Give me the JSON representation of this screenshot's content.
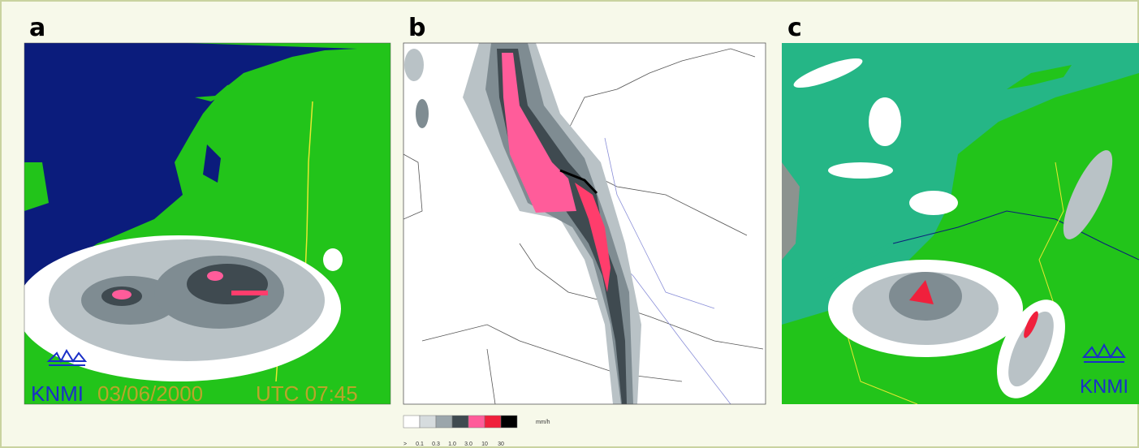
{
  "panels": [
    {
      "label": "a",
      "logo": "KNMI",
      "date": "03/06/2000",
      "time": "UTC 07:45"
    },
    {
      "label": "b"
    },
    {
      "label": "c",
      "logo": "KNMI"
    }
  ],
  "legend": {
    "prefix": ">",
    "labels": [
      "0.1",
      "0.3",
      "1.0",
      "3.0",
      "10",
      "30"
    ],
    "unit": "mm/h"
  }
}
